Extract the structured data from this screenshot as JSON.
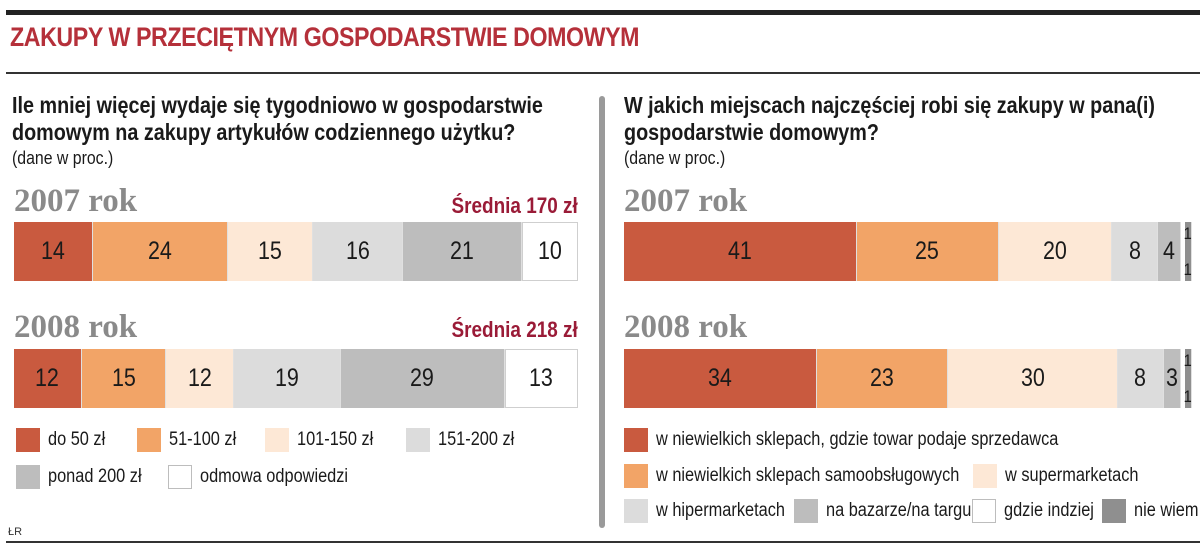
{
  "title": "ZAKUPY W PRZECIĘTNYM GOSPODARSTWIE DOMOWYM",
  "source": "ŁR",
  "left": {
    "question_line1": "Ile mniej więcej wydaje się tygodniowo w gospodarstwie",
    "question_line2": "domowym na zakupy artykułów codziennego użytku?",
    "unit": "(dane w proc.)"
  },
  "right": {
    "question_line1": "W jakich miejscach najczęściej robi się zakupy w pana(i)",
    "question_line2": "gospodarstwie domowym?",
    "unit": "(dane w proc.)"
  },
  "chart_data": [
    {
      "type": "bar",
      "orientation": "horizontal-stacked-100",
      "categories": [
        "2007 rok",
        "2008 rok"
      ],
      "averages": [
        "Średnia 170 zł",
        "Średnia 218 zł"
      ],
      "series": [
        {
          "name": "do 50 zł",
          "color": "#c95a3f",
          "values": [
            14,
            12
          ]
        },
        {
          "name": "51-100 zł",
          "color": "#f2a467",
          "values": [
            24,
            15
          ]
        },
        {
          "name": "101-150 zł",
          "color": "#fde8d6",
          "values": [
            15,
            12
          ]
        },
        {
          "name": "151-200 zł",
          "color": "#dcdcdc",
          "values": [
            16,
            19
          ]
        },
        {
          "name": "ponad 200 zł",
          "color": "#bdbdbd",
          "values": [
            21,
            29
          ]
        },
        {
          "name": "odmowa odpowiedzi",
          "color": "#ffffff",
          "values": [
            10,
            13
          ]
        }
      ],
      "legend_position": "bottom"
    },
    {
      "type": "bar",
      "orientation": "horizontal-stacked-100",
      "categories": [
        "2007 rok",
        "2008 rok"
      ],
      "series": [
        {
          "name": "w niewielkich sklepach, gdzie towar podaje sprzedawca",
          "color": "#c95a3f",
          "values": [
            41,
            34
          ]
        },
        {
          "name": "w niewielkich sklepach samoobsługowych",
          "color": "#f2a467",
          "values": [
            25,
            23
          ]
        },
        {
          "name": "w supermarketach",
          "color": "#fde8d6",
          "values": [
            20,
            30
          ]
        },
        {
          "name": "w hipermarketach",
          "color": "#dcdcdc",
          "values": [
            8,
            8
          ]
        },
        {
          "name": "na bazarze/na targu",
          "color": "#bdbdbd",
          "values": [
            4,
            3
          ]
        },
        {
          "name": "gdzie indziej",
          "color": "#ffffff",
          "values": [
            1,
            1
          ]
        },
        {
          "name": "nie wiem",
          "color": "#8f8f8f",
          "values": [
            1,
            1
          ]
        }
      ],
      "legend_position": "bottom"
    }
  ]
}
